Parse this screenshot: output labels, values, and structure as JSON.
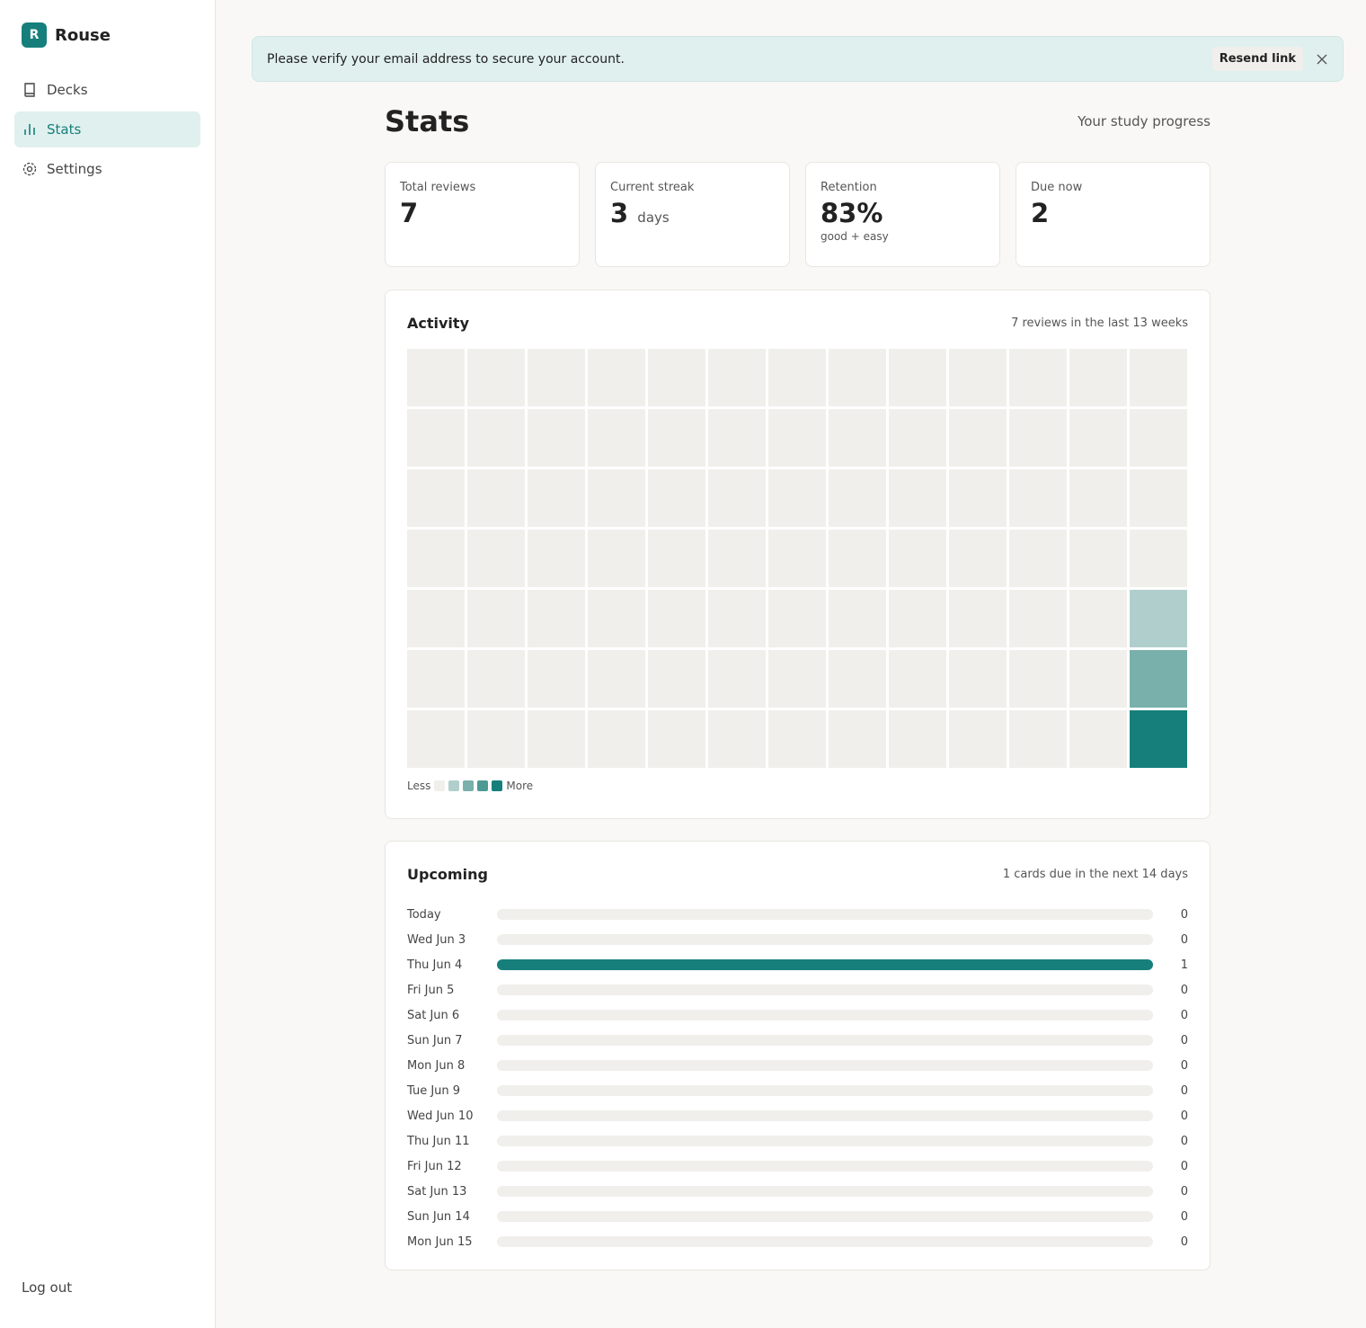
{
  "sidebar": {
    "brand_initial": "R",
    "brand": "Rouse",
    "nav": [
      "Decks",
      "Stats",
      "Settings"
    ],
    "active": 1,
    "logout": "Log out"
  },
  "banner": {
    "message": "Please verify your email address to secure your account.",
    "action": "Resend link"
  },
  "header": {
    "title": "Stats",
    "subtitle": "Your study progress"
  },
  "stat_cards": [
    {
      "label": "Total reviews",
      "value": 7
    },
    {
      "label": "Current streak",
      "value": 3,
      "unit": "days"
    },
    {
      "label": "Retention",
      "value": "83%",
      "note": "good + easy"
    },
    {
      "label": "Due now",
      "value": 2
    }
  ],
  "activity": {
    "title": "Activity",
    "summary": "7 reviews in the last 13 weeks",
    "legend_less": "Less",
    "legend_more": "More",
    "colors": [
      "#f0efeb",
      "#b0cfcc",
      "#7ab0ab",
      "#4d9a95",
      "#167f7b"
    ],
    "weeks": [
      [
        0,
        0,
        0,
        0,
        0,
        0,
        0
      ],
      [
        0,
        0,
        0,
        0,
        0,
        0,
        0
      ],
      [
        0,
        0,
        0,
        0,
        0,
        0,
        0
      ],
      [
        0,
        0,
        0,
        0,
        0,
        0,
        0
      ],
      [
        0,
        0,
        0,
        0,
        0,
        0,
        0
      ],
      [
        0,
        0,
        0,
        0,
        0,
        0,
        0
      ],
      [
        0,
        0,
        0,
        0,
        0,
        0,
        0
      ],
      [
        0,
        0,
        0,
        0,
        0,
        0,
        0
      ],
      [
        0,
        0,
        0,
        0,
        0,
        0,
        0
      ],
      [
        0,
        0,
        0,
        0,
        0,
        0,
        0
      ],
      [
        0,
        0,
        0,
        0,
        0,
        0,
        0
      ],
      [
        0,
        0,
        0,
        0,
        0,
        0,
        0
      ],
      [
        0,
        0,
        0,
        0,
        1,
        2,
        4
      ]
    ]
  },
  "upcoming": {
    "title": "Upcoming",
    "summary": "1 cards due in the next 14 days",
    "color": "#167f7b",
    "days": [
      "Today",
      "Wed Jun 3",
      "Thu Jun 4",
      "Fri Jun 5",
      "Sat Jun 6",
      "Sun Jun 7",
      "Mon Jun 8",
      "Tue Jun 9",
      "Wed Jun 10",
      "Thu Jun 11",
      "Fri Jun 12",
      "Sat Jun 13",
      "Sun Jun 14",
      "Mon Jun 15"
    ],
    "counts": [
      0,
      0,
      1,
      0,
      0,
      0,
      0,
      0,
      0,
      0,
      0,
      0,
      0,
      0
    ]
  }
}
